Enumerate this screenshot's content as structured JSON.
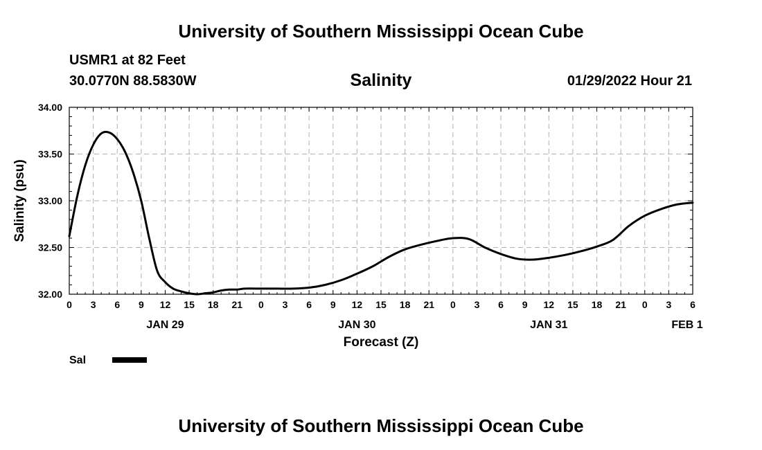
{
  "page": {
    "top_title": "University of Southern Mississippi Ocean Cube",
    "bottom_title": "University of Southern Mississippi Ocean Cube",
    "station": "USMR1 at 82 Feet",
    "coords": "30.0770N  88.5830W",
    "datetime": "01/29/2022 Hour 21"
  },
  "chart_data": {
    "type": "line",
    "title": "Salinity",
    "xlabel": "Forecast (Z)",
    "ylabel": "Salinity (psu)",
    "ylim": [
      32.0,
      34.0
    ],
    "xlim": [
      0,
      78
    ],
    "x_unit": "hours from 00Z JAN 29",
    "grid": true,
    "y_ticks": [
      "32.00",
      "32.50",
      "33.00",
      "33.50",
      "34.00"
    ],
    "x_tick_labels": [
      "0",
      "3",
      "6",
      "9",
      "12",
      "15",
      "18",
      "21",
      "0",
      "3",
      "6",
      "9",
      "12",
      "15",
      "18",
      "21",
      "0",
      "3",
      "6",
      "9",
      "12",
      "15",
      "18",
      "21",
      "0",
      "3",
      "6"
    ],
    "day_labels": [
      {
        "label": "JAN 29",
        "hour": 12
      },
      {
        "label": "JAN 30",
        "hour": 36
      },
      {
        "label": "JAN 31",
        "hour": 60
      },
      {
        "label": "FEB 1",
        "hour": 78
      }
    ],
    "legend": [
      {
        "name": "Sal",
        "color": "#000000"
      }
    ],
    "series": [
      {
        "name": "Sal",
        "color": "#000000",
        "x": [
          0,
          1,
          2,
          3,
          4,
          5,
          6,
          7,
          8,
          9,
          10,
          11,
          12,
          13,
          14,
          15,
          16,
          17,
          18,
          19,
          20,
          21,
          22,
          24,
          26,
          28,
          30,
          32,
          34,
          36,
          38,
          40,
          42,
          44,
          46,
          48,
          50,
          52,
          54,
          56,
          58,
          60,
          62,
          64,
          66,
          68,
          70,
          72,
          74,
          76,
          78
        ],
        "y": [
          32.62,
          33.05,
          33.38,
          33.6,
          33.72,
          33.73,
          33.66,
          33.52,
          33.3,
          33.0,
          32.6,
          32.25,
          32.13,
          32.06,
          32.03,
          32.01,
          32.0,
          32.01,
          32.02,
          32.04,
          32.05,
          32.05,
          32.06,
          32.06,
          32.06,
          32.06,
          32.07,
          32.1,
          32.15,
          32.22,
          32.3,
          32.4,
          32.48,
          32.53,
          32.57,
          32.6,
          32.59,
          32.5,
          32.43,
          32.38,
          32.37,
          32.39,
          32.42,
          32.46,
          32.51,
          32.58,
          32.73,
          32.84,
          32.91,
          32.96,
          32.98
        ]
      }
    ]
  }
}
